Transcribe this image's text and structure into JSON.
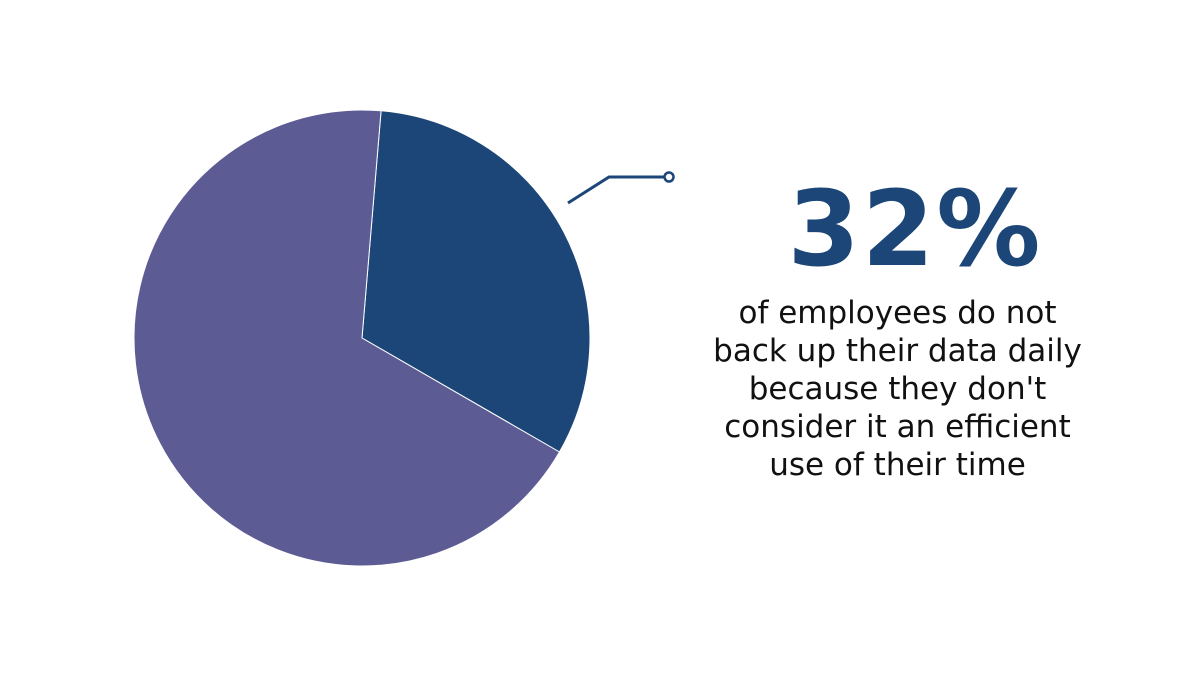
{
  "chart_data": {
    "type": "pie",
    "slices": [
      {
        "label": "do not back up daily",
        "value": 32,
        "color": "#1b4677"
      },
      {
        "label": "other",
        "value": 68,
        "color": "#5d5b94"
      }
    ]
  },
  "callout": {
    "value": "32%",
    "text": "of employees do not back up their data daily because they don't consider it an efficient use of their time"
  }
}
